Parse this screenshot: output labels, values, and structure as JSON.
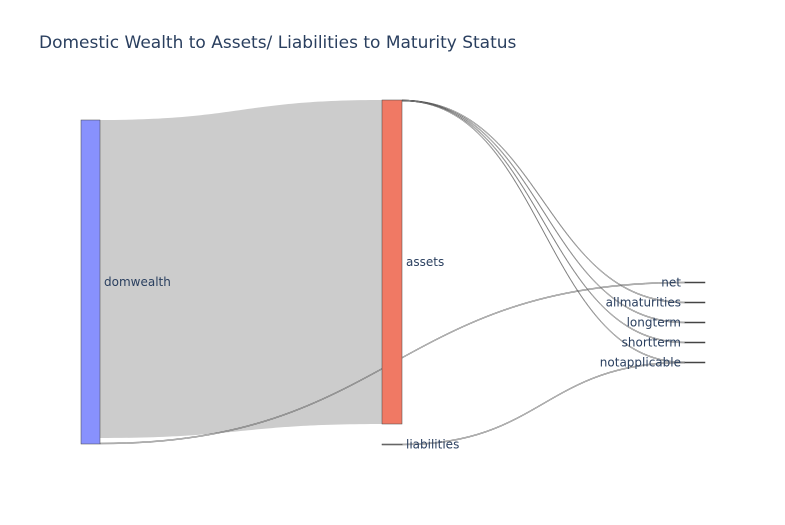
{
  "chart_data": {
    "type": "sankey",
    "title": "Domestic Wealth to Assets/ Liabilities to Maturity Status",
    "nodes": [
      {
        "id": "domwealth",
        "label": "domwealth",
        "color": "#8891fd"
      },
      {
        "id": "assets",
        "label": "assets",
        "color": "#f07964"
      },
      {
        "id": "liabilities",
        "label": "liabilities",
        "color": "#888888"
      },
      {
        "id": "net",
        "label": "net",
        "color": "#444444"
      },
      {
        "id": "allmaturities",
        "label": "allmaturities",
        "color": "#444444"
      },
      {
        "id": "longterm",
        "label": "longterm",
        "color": "#444444"
      },
      {
        "id": "shortterm",
        "label": "shortterm",
        "color": "#444444"
      },
      {
        "id": "notapplicable",
        "label": "notapplicable",
        "color": "#444444"
      }
    ],
    "links": [
      {
        "source": "domwealth",
        "target": "assets",
        "value": 1000
      },
      {
        "source": "domwealth",
        "target": "net",
        "value": 1
      },
      {
        "source": "assets",
        "target": "allmaturities",
        "value": 1
      },
      {
        "source": "assets",
        "target": "longterm",
        "value": 1
      },
      {
        "source": "assets",
        "target": "shortterm",
        "value": 1
      },
      {
        "source": "assets",
        "target": "notapplicable",
        "value": 1
      },
      {
        "source": "liabilities",
        "target": "notapplicable",
        "value": 1
      }
    ],
    "link_color": "#cccccc"
  }
}
